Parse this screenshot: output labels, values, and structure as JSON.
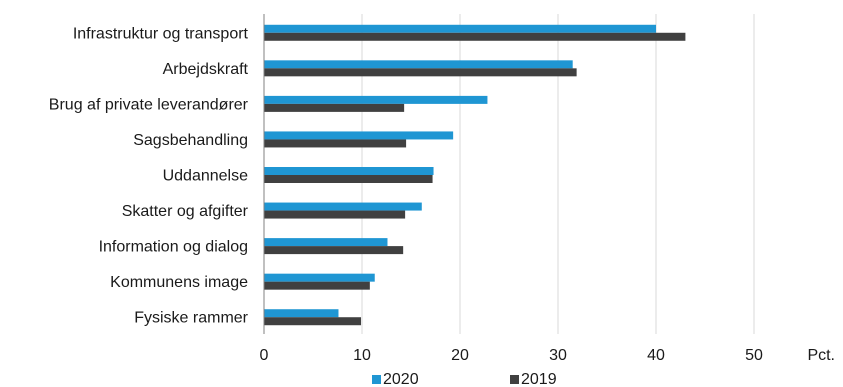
{
  "chart_data": {
    "type": "bar",
    "orientation": "horizontal",
    "categories": [
      "Infrastruktur og transport",
      "Arbejdskraft",
      "Brug af private leverandører",
      "Sagsbehandling",
      "Uddannelse",
      "Skatter og afgifter",
      "Information og dialog",
      "Kommunens image",
      "Fysiske rammer"
    ],
    "series": [
      {
        "name": "2020",
        "color": "#1f96d3",
        "values": [
          40.0,
          31.5,
          22.8,
          19.3,
          17.3,
          16.1,
          12.6,
          11.3,
          7.6
        ]
      },
      {
        "name": "2019",
        "color": "#404040",
        "values": [
          43.0,
          31.9,
          14.3,
          14.5,
          17.2,
          14.4,
          14.2,
          10.8,
          9.9
        ]
      }
    ],
    "xlim": [
      0,
      50
    ],
    "xticks": [
      0,
      10,
      20,
      30,
      40,
      50
    ],
    "xunit": "Pct.",
    "grid": "vertical",
    "legend": "bottom-center"
  }
}
